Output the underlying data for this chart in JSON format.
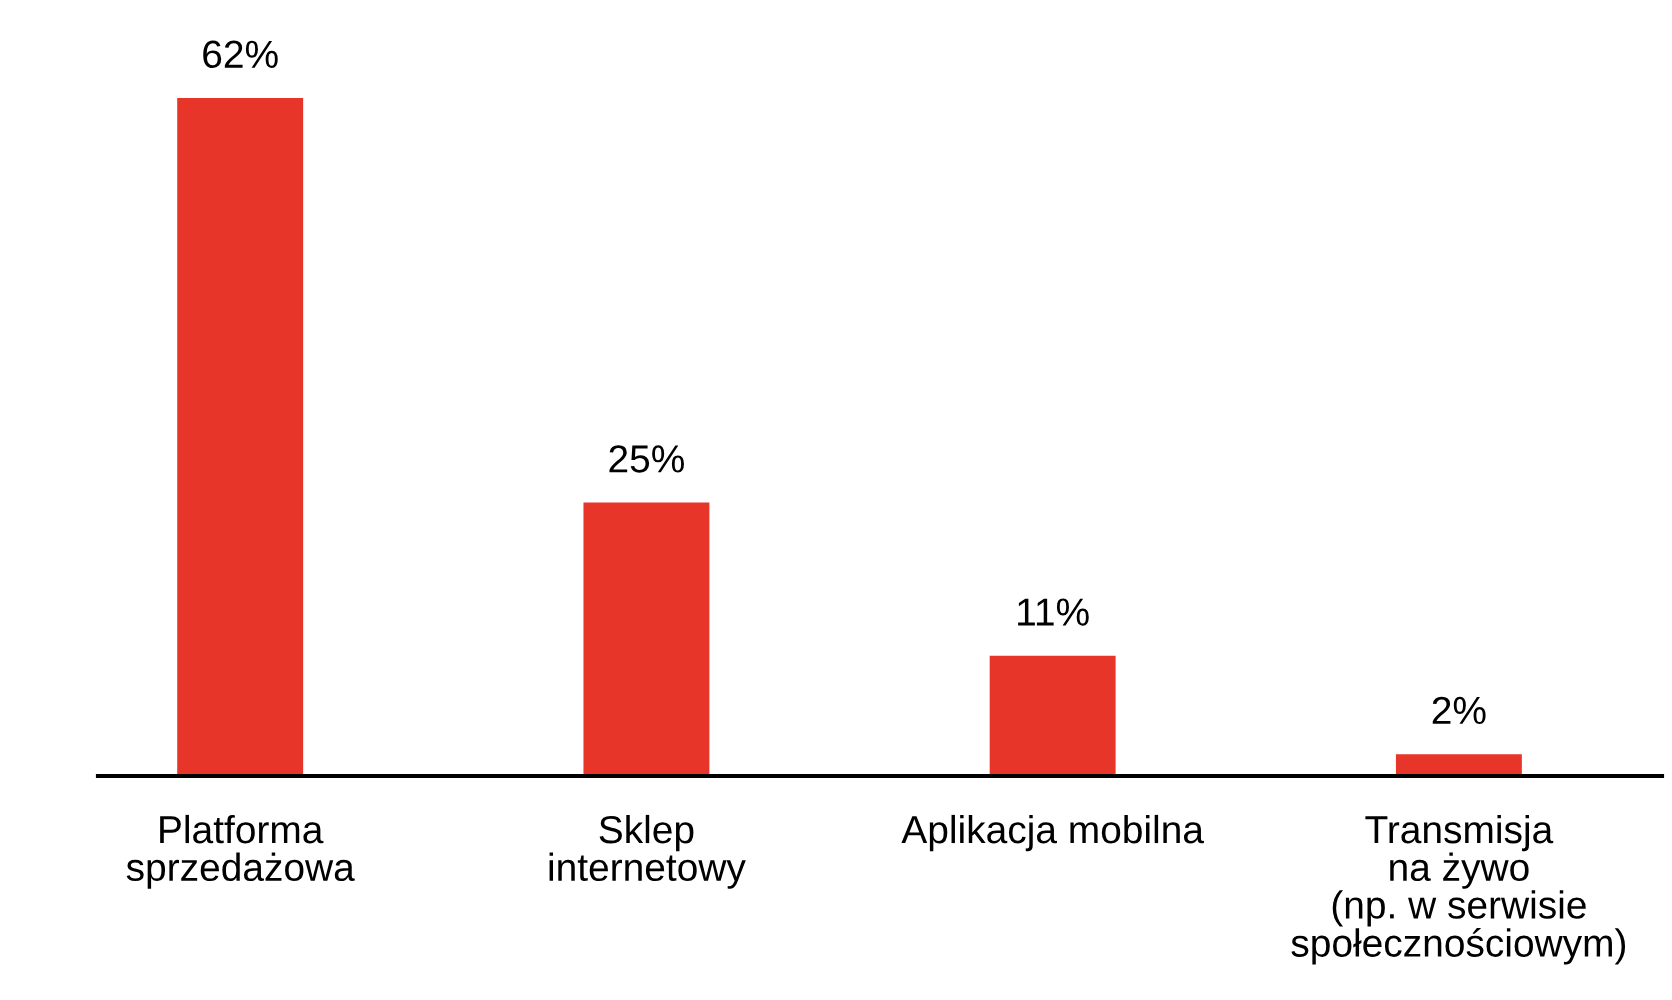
{
  "chart_data": {
    "type": "bar",
    "categories": [
      "Platforma\nsprzedażowa",
      "Sklep\ninternetowy",
      "Aplikacja mobilna",
      "Transmisja\nna żywo\n(np. w serwisie\nspołecznościowym)"
    ],
    "values": [
      62,
      25,
      11,
      2
    ],
    "value_labels": [
      "62%",
      "25%",
      "11%",
      "2%"
    ],
    "color": "#e8352a",
    "grid": false,
    "legend": false
  }
}
